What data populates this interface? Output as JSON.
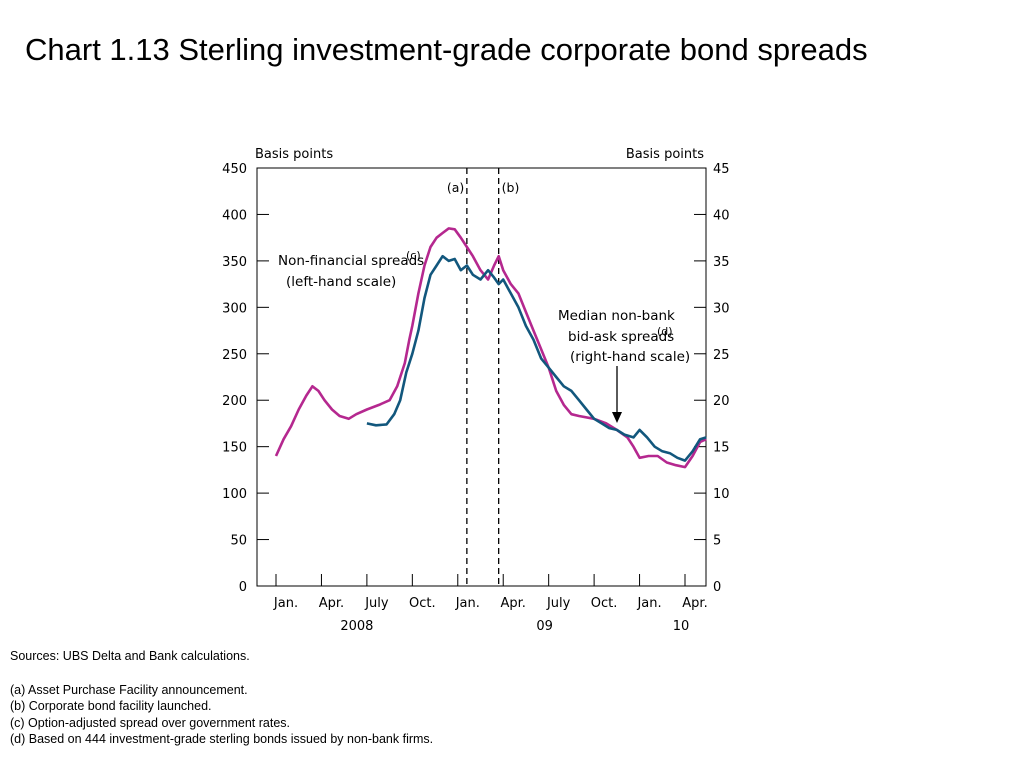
{
  "title": "Chart 1.13  Sterling investment-grade corporate bond spreads",
  "notes": {
    "sources": "Sources:  UBS Delta and Bank calculations.",
    "footnotes": [
      "(a)  Asset Purchase Facility announcement.",
      "(b)  Corporate bond facility launched.",
      "(c)  Option-adjusted spread over government rates.",
      "(d)  Based on 444 investment-grade sterling bonds issued by non-bank firms."
    ]
  },
  "chart_data": {
    "type": "line",
    "left_axis": {
      "label": "Basis points",
      "min": 0,
      "max": 450,
      "ticks": [
        "0",
        "50",
        "100",
        "150",
        "200",
        "250",
        "300",
        "350",
        "400",
        "450"
      ]
    },
    "right_axis": {
      "label": "Basis points",
      "min": 0,
      "max": 45,
      "ticks": [
        "0",
        "5",
        "10",
        "15",
        "20",
        "25",
        "30",
        "35",
        "40",
        "45"
      ]
    },
    "x_axis": {
      "range": [
        0,
        28.5
      ],
      "ticks": [
        {
          "t": 0,
          "label": "Jan."
        },
        {
          "t": 3,
          "label": "Apr."
        },
        {
          "t": 6,
          "label": "July"
        },
        {
          "t": 9,
          "label": "Oct."
        },
        {
          "t": 12,
          "label": "Jan."
        },
        {
          "t": 15,
          "label": "Apr."
        },
        {
          "t": 18,
          "label": "July"
        },
        {
          "t": 21,
          "label": "Oct."
        },
        {
          "t": 24,
          "label": "Jan."
        },
        {
          "t": 27,
          "label": "Apr."
        }
      ],
      "years": [
        {
          "t": 6,
          "label": "2008"
        },
        {
          "t": 18,
          "label": "09"
        },
        {
          "t": 27,
          "label": "10"
        }
      ]
    },
    "markers": [
      {
        "label": "(a)",
        "t": 12.6
      },
      {
        "label": "(b)",
        "t": 14.7
      }
    ],
    "annotations": {
      "nonfin_line1": "Non-financial spreads",
      "nonfin_note": "(c)",
      "nonfin_line2": "(left-hand scale)",
      "median_line1": "Median non-bank",
      "median_line2": "bid-ask spreads",
      "median_note": "(d)",
      "median_line3": "(right-hand scale)"
    },
    "series": [
      {
        "axis": "left",
        "color": "#b5288f",
        "points": [
          [
            0,
            140
          ],
          [
            0.5,
            158
          ],
          [
            1,
            172
          ],
          [
            1.5,
            190
          ],
          [
            2,
            205
          ],
          [
            2.4,
            215
          ],
          [
            2.8,
            210
          ],
          [
            3.2,
            200
          ],
          [
            3.7,
            190
          ],
          [
            4.2,
            183
          ],
          [
            4.8,
            180
          ],
          [
            5.3,
            185
          ],
          [
            6,
            190
          ],
          [
            6.8,
            195
          ],
          [
            7.5,
            200
          ],
          [
            8,
            215
          ],
          [
            8.5,
            240
          ],
          [
            8.8,
            265
          ],
          [
            9,
            280
          ],
          [
            9.4,
            315
          ],
          [
            9.8,
            345
          ],
          [
            10.2,
            365
          ],
          [
            10.6,
            375
          ],
          [
            11,
            380
          ],
          [
            11.4,
            385
          ],
          [
            11.8,
            384
          ],
          [
            12.2,
            375
          ],
          [
            12.6,
            365
          ],
          [
            13,
            355
          ],
          [
            13.5,
            340
          ],
          [
            14,
            330
          ],
          [
            14.4,
            345
          ],
          [
            14.7,
            355
          ],
          [
            15,
            340
          ],
          [
            15.5,
            325
          ],
          [
            16,
            315
          ],
          [
            16.5,
            295
          ],
          [
            17,
            275
          ],
          [
            17.5,
            255
          ],
          [
            18,
            235
          ],
          [
            18.5,
            210
          ],
          [
            19,
            195
          ],
          [
            19.5,
            185
          ],
          [
            20,
            183
          ],
          [
            21,
            180
          ],
          [
            21.8,
            175
          ],
          [
            22.5,
            168
          ],
          [
            23.2,
            160
          ],
          [
            23.6,
            150
          ],
          [
            24,
            138
          ],
          [
            24.6,
            140
          ],
          [
            25.2,
            140
          ],
          [
            25.8,
            133
          ],
          [
            26.4,
            130
          ],
          [
            27,
            128
          ],
          [
            27.5,
            140
          ],
          [
            28,
            155
          ],
          [
            28.4,
            158
          ]
        ]
      },
      {
        "axis": "right",
        "color": "#12577d",
        "points": [
          [
            6,
            17.5
          ],
          [
            6.6,
            17.3
          ],
          [
            7.3,
            17.4
          ],
          [
            7.8,
            18.5
          ],
          [
            8.2,
            20
          ],
          [
            8.6,
            23
          ],
          [
            9,
            25
          ],
          [
            9.4,
            27.5
          ],
          [
            9.8,
            31
          ],
          [
            10.2,
            33.5
          ],
          [
            10.6,
            34.5
          ],
          [
            11,
            35.5
          ],
          [
            11.4,
            35
          ],
          [
            11.8,
            35.2
          ],
          [
            12.2,
            34
          ],
          [
            12.6,
            34.5
          ],
          [
            13,
            33.5
          ],
          [
            13.5,
            33
          ],
          [
            14,
            34
          ],
          [
            14.4,
            33.2
          ],
          [
            14.7,
            32.5
          ],
          [
            15,
            33
          ],
          [
            15.5,
            31.5
          ],
          [
            16,
            30
          ],
          [
            16.5,
            28
          ],
          [
            17,
            26.5
          ],
          [
            17.5,
            24.5
          ],
          [
            18,
            23.5
          ],
          [
            18.5,
            22.5
          ],
          [
            19,
            21.5
          ],
          [
            19.5,
            21
          ],
          [
            20,
            20
          ],
          [
            20.5,
            19
          ],
          [
            21,
            18
          ],
          [
            21.5,
            17.5
          ],
          [
            22,
            17
          ],
          [
            22.5,
            16.8
          ],
          [
            23,
            16.3
          ],
          [
            23.6,
            16
          ],
          [
            24,
            16.8
          ],
          [
            24.5,
            16
          ],
          [
            25,
            15
          ],
          [
            25.5,
            14.5
          ],
          [
            26,
            14.3
          ],
          [
            26.5,
            13.8
          ],
          [
            27,
            13.5
          ],
          [
            27.5,
            14.5
          ],
          [
            28,
            15.8
          ],
          [
            28.4,
            16
          ]
        ]
      }
    ]
  }
}
